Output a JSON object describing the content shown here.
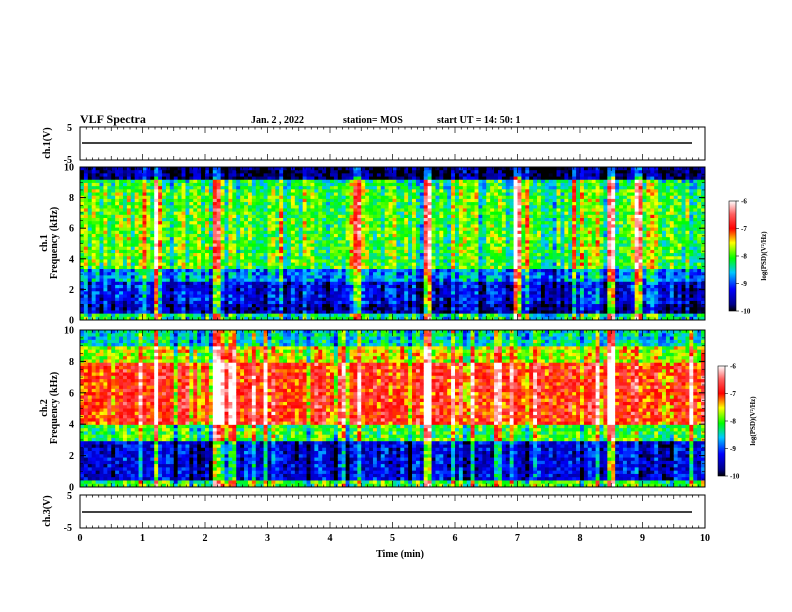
{
  "header": {
    "title": "VLF Spectra",
    "date": "Jan. 2 , 2022",
    "station": "station= MOS",
    "start": "start UT =  14: 50: 1"
  },
  "chart_data": [
    {
      "type": "line",
      "name": "ch1-voltage",
      "ylabel": "ch.1(V)",
      "ylim": [
        -5,
        5
      ],
      "yticks": [
        "5",
        "-5"
      ],
      "x": [
        0,
        10
      ],
      "y": [
        0,
        0
      ]
    },
    {
      "type": "heatmap",
      "name": "ch1-spectrogram",
      "ylabel_top": "ch.1",
      "ylabel": "Frequency (kHz)",
      "xlim": [
        0,
        10
      ],
      "ylim": [
        0,
        10
      ],
      "yticks": [
        "0",
        "2",
        "4",
        "6",
        "8",
        "10"
      ],
      "bands": [
        {
          "from": 0.0,
          "to": 0.4,
          "level": -8.3
        },
        {
          "from": 0.4,
          "to": 1.0,
          "level": -9.6
        },
        {
          "from": 1.0,
          "to": 2.6,
          "level": -9.3
        },
        {
          "from": 2.6,
          "to": 3.4,
          "level": -8.8
        },
        {
          "from": 3.4,
          "to": 8.6,
          "level": -8.0
        },
        {
          "from": 8.6,
          "to": 9.2,
          "level": -8.2
        },
        {
          "from": 9.2,
          "to": 10.0,
          "level": -9.8
        }
      ],
      "bursts_min": [
        1.22,
        2.2,
        4.45,
        5.55,
        7.0,
        8.5,
        8.95
      ],
      "colorbar": {
        "range": [
          -10,
          -6
        ],
        "ticks": [
          "-6",
          "-7",
          "-8",
          "-9",
          "-10"
        ],
        "label": "log(PSD)(V²/Hz)"
      }
    },
    {
      "type": "heatmap",
      "name": "ch2-spectrogram",
      "ylabel_top": "ch.2",
      "ylabel": "Frequency (kHz)",
      "xlim": [
        0,
        10
      ],
      "ylim": [
        0,
        10
      ],
      "yticks": [
        "0",
        "2",
        "4",
        "6",
        "8",
        "10"
      ],
      "bands": [
        {
          "from": 0.0,
          "to": 0.4,
          "level": -8.0
        },
        {
          "from": 0.4,
          "to": 3.0,
          "level": -9.3
        },
        {
          "from": 3.0,
          "to": 4.0,
          "level": -8.0
        },
        {
          "from": 4.0,
          "to": 8.0,
          "level": -6.9
        },
        {
          "from": 8.0,
          "to": 9.0,
          "level": -7.6
        },
        {
          "from": 9.0,
          "to": 10.0,
          "level": -8.4
        }
      ],
      "bursts_min": [
        1.22,
        2.2,
        5.55,
        8.5
      ],
      "colorbar": {
        "range": [
          -10,
          -6
        ],
        "ticks": [
          "-6",
          "-7",
          "-8",
          "-9",
          "-10"
        ],
        "label": "log(PSD)(V²/Hz)"
      }
    },
    {
      "type": "line",
      "name": "ch3-voltage",
      "ylabel": "ch.3(V)",
      "ylim": [
        -5,
        5
      ],
      "yticks": [
        "5",
        "-5"
      ],
      "x": [
        0,
        10
      ],
      "y": [
        0,
        0
      ]
    }
  ],
  "xaxis": {
    "label": "Time (min)",
    "ticks": [
      "0",
      "1",
      "2",
      "3",
      "4",
      "5",
      "6",
      "7",
      "8",
      "9",
      "10"
    ]
  }
}
